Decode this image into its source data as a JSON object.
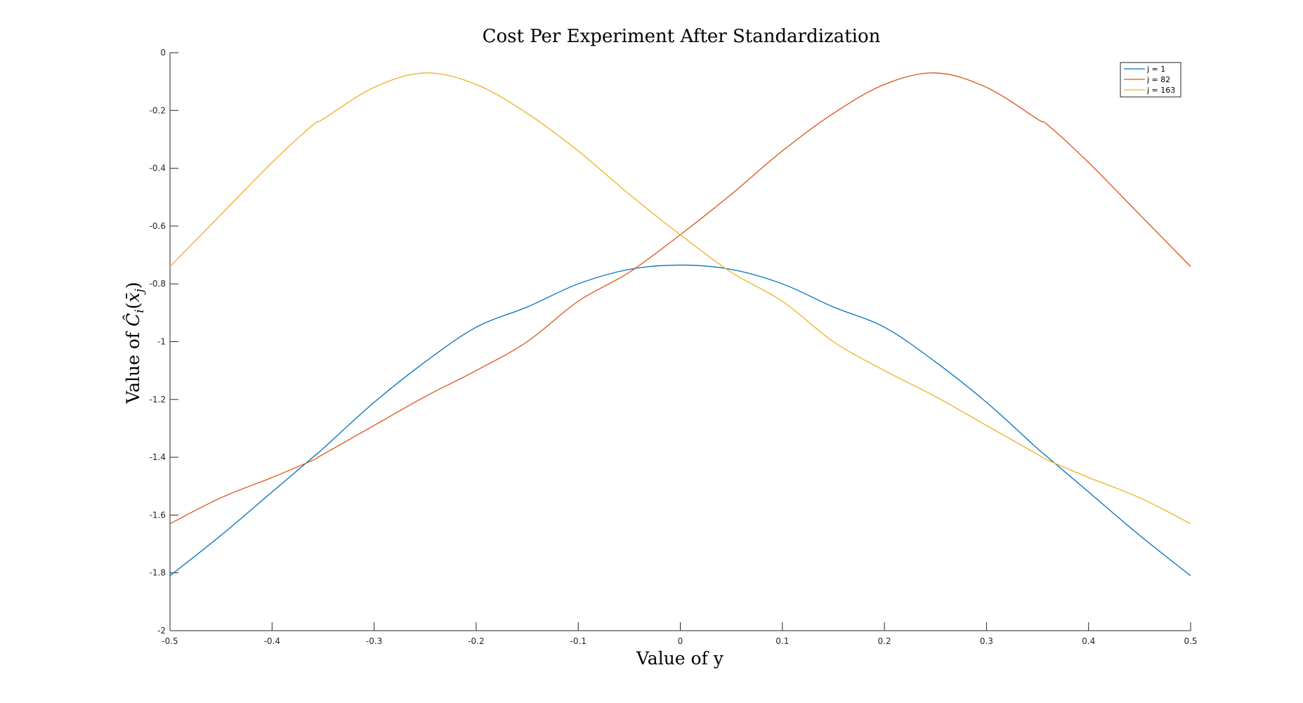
{
  "chart_data": {
    "type": "line",
    "title": "Cost Per Experiment After Standardization",
    "xlabel": "Value of y",
    "ylabel": "Value of Ĉ_i(x̄_j)",
    "ylabel_prefix": "Value of ",
    "ylabel_symbol": "Ĉ",
    "ylabel_sub_i": "i",
    "ylabel_open": "(",
    "ylabel_xbar": "x̄",
    "ylabel_sub_j": "j",
    "ylabel_close": ")",
    "xlim": [
      -0.5,
      0.5
    ],
    "ylim": [
      -2,
      0
    ],
    "xticks": [
      -0.5,
      -0.4,
      -0.3,
      -0.2,
      -0.1,
      0,
      0.1,
      0.2,
      0.3,
      0.4,
      0.5
    ],
    "xtick_labels": [
      "-0.5",
      "-0.4",
      "-0.3",
      "-0.2",
      "-0.1",
      "0",
      "0.1",
      "0.2",
      "0.3",
      "0.4",
      "0.5"
    ],
    "yticks": [
      0,
      -0.2,
      -0.4,
      -0.6,
      -0.8,
      -1,
      -1.2,
      -1.4,
      -1.6,
      -1.8,
      -2
    ],
    "ytick_labels": [
      "0",
      "-0.2",
      "-0.4",
      "-0.6",
      "-0.8",
      "-1",
      "-1.2",
      "-1.4",
      "-1.6",
      "-1.8",
      "-2"
    ],
    "grid": false,
    "legend_position": "top-right",
    "x": [
      -0.5,
      -0.45,
      -0.4,
      -0.36,
      -0.35,
      -0.3,
      -0.25,
      -0.2,
      -0.15,
      -0.1,
      -0.05,
      0,
      0.05,
      0.1,
      0.15,
      0.2,
      0.25,
      0.3,
      0.35,
      0.36,
      0.4,
      0.45,
      0.5
    ],
    "series": [
      {
        "name": "j = 1",
        "color": "#0072BD",
        "values": [
          -1.81,
          -1.67,
          -1.52,
          -1.4,
          -1.37,
          -1.21,
          -1.07,
          -0.95,
          -0.88,
          -0.8,
          -0.75,
          -0.735,
          -0.75,
          -0.8,
          -0.88,
          -0.95,
          -1.07,
          -1.21,
          -1.37,
          -1.4,
          -1.52,
          -1.67,
          -1.81
        ]
      },
      {
        "name": "j = 82",
        "color": "#D95319",
        "values": [
          -1.63,
          -1.54,
          -1.47,
          -1.41,
          -1.39,
          -1.29,
          -1.19,
          -1.1,
          -1.0,
          -0.86,
          -0.76,
          -0.63,
          -0.49,
          -0.34,
          -0.21,
          -0.11,
          -0.07,
          -0.12,
          -0.23,
          -0.25,
          -0.38,
          -0.56,
          -0.74
        ]
      },
      {
        "name": "j = 163",
        "color": "#EDB120",
        "values": [
          -0.74,
          -0.56,
          -0.38,
          -0.25,
          -0.23,
          -0.12,
          -0.07,
          -0.11,
          -0.21,
          -0.34,
          -0.49,
          -0.63,
          -0.76,
          -0.86,
          -1.0,
          -1.1,
          -1.19,
          -1.29,
          -1.39,
          -1.41,
          -1.47,
          -1.54,
          -1.63
        ]
      }
    ]
  }
}
